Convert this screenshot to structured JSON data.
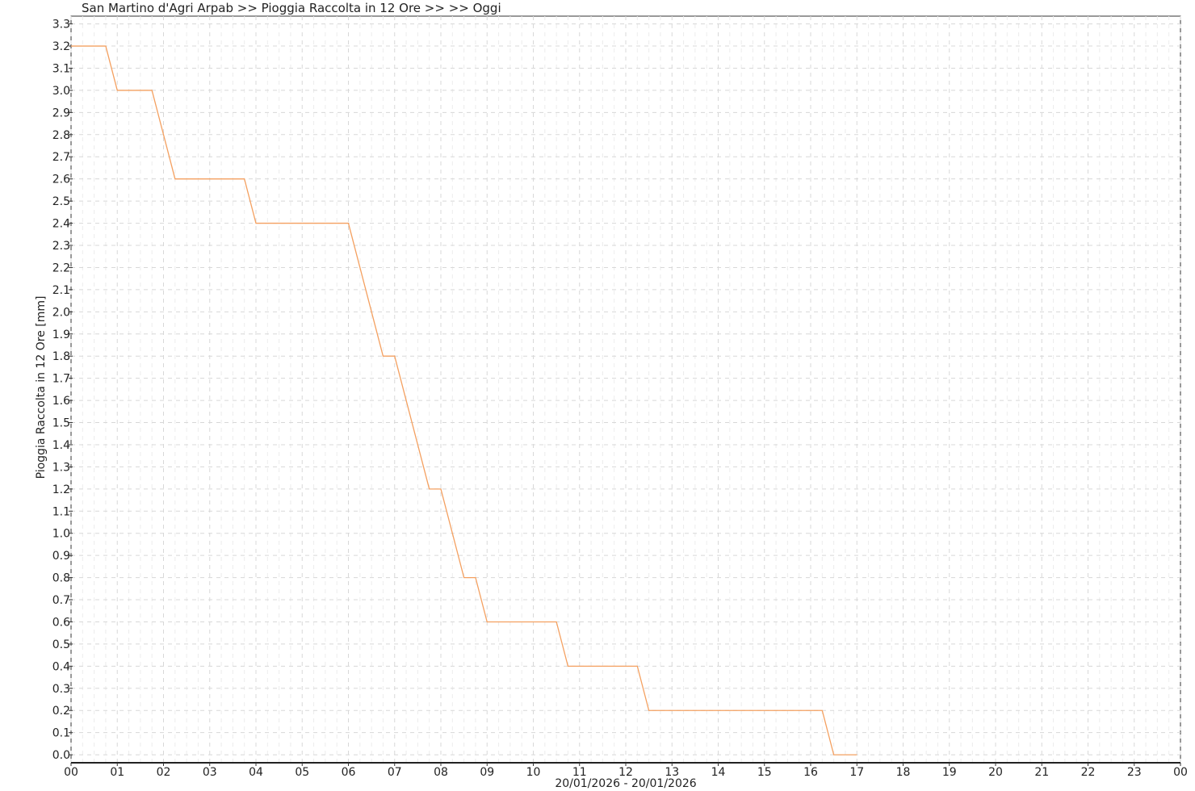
{
  "chart_data": {
    "type": "line",
    "title": "San Martino d'Agri Arpab >> Pioggia Raccolta in 12 Ore >>  >> Oggi",
    "xlabel": "20/01/2026 - 20/01/2026",
    "ylabel": "Pioggia Raccolta in 12 Ore  [mm]",
    "x_unit": "hour of day",
    "xlim": [
      0,
      24
    ],
    "ylim": [
      -0.036,
      3.335
    ],
    "x_ticks": [
      "00",
      "01",
      "02",
      "03",
      "04",
      "05",
      "06",
      "07",
      "08",
      "09",
      "10",
      "11",
      "12",
      "13",
      "14",
      "15",
      "16",
      "17",
      "18",
      "19",
      "20",
      "21",
      "22",
      "23",
      "00"
    ],
    "y_ticks": [
      "0.0",
      "0.1",
      "0.2",
      "0.3",
      "0.4",
      "0.5",
      "0.6",
      "0.7",
      "0.8",
      "0.9",
      "1.0",
      "1.1",
      "1.2",
      "1.3",
      "1.4",
      "1.5",
      "1.6",
      "1.7",
      "1.8",
      "1.9",
      "2.0",
      "2.1",
      "2.2",
      "2.3",
      "2.4",
      "2.5",
      "2.6",
      "2.7",
      "2.8",
      "2.9",
      "3.0",
      "3.1",
      "3.2",
      "3.3"
    ],
    "grid": true,
    "line_color": "#f4a060",
    "series": [
      {
        "x": [
          0,
          0.75,
          1,
          1.75,
          2.25,
          3.75,
          4,
          6,
          6.75,
          7,
          7.75,
          8,
          8.5,
          8.75,
          9,
          10.5,
          10.75,
          12.25,
          12.5,
          16.25,
          16.5,
          17
        ],
        "y": [
          3.2,
          3.2,
          3.0,
          3.0,
          2.6,
          2.6,
          2.4,
          2.4,
          1.8,
          1.8,
          1.2,
          1.2,
          0.8,
          0.8,
          0.6,
          0.6,
          0.4,
          0.4,
          0.2,
          0.2,
          0.0,
          0.0
        ]
      }
    ]
  }
}
